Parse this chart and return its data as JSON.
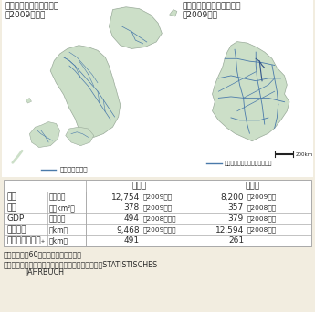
{
  "japan_map_title_line1": "日本の高規格幹線道路網",
  "japan_map_title_line2": "（2009年度）",
  "germany_map_title_line1": "ドイツの高規格幹線道路網",
  "germany_map_title_line2": "（2009年）",
  "japan_legend": "高規格幹線道路",
  "germany_legend": "連邦高速道路（アウトバーン）",
  "col0_header": "",
  "col1_header": "",
  "col2_header": "日　本",
  "col3_header": "ドイツ",
  "rows": [
    [
      "人口",
      "（万人）",
      "12,754",
      "（2009年）",
      "8,200",
      "（2009年）"
    ],
    [
      "面積",
      "（千km²）",
      "378",
      "（2009年）",
      "357",
      "（2008年）"
    ],
    [
      "GDP",
      "（兆円）",
      "494",
      "（2008年度）",
      "379",
      "（2008年）"
    ],
    [
      "供用延長",
      "（km）",
      "9,468",
      "（2009年度）",
      "12,594",
      "（2008年）"
    ],
    [
      "平均都市間距離₊",
      "（km）",
      "491",
      "",
      "261",
      ""
    ]
  ],
  "note_line1": "（注）　人口60万人以上の都市を対象",
  "note_line2": "資料）総務省資料、内閣府資料、国土交通省資料、STATISTISCHES",
  "note_line3": "　　　　JAHRBUCH",
  "bg_color": "#f2ede0",
  "map_bg": "#ffffff",
  "land_color": "#ccdfc8",
  "road_color": "#4a7aaa",
  "road_color2": "#6699bb",
  "border_color": "#99aa99",
  "table_line_color": "#aaaaaa",
  "text_color": "#2a2a2a",
  "font_size": 6.5,
  "small_font_size": 5.8
}
